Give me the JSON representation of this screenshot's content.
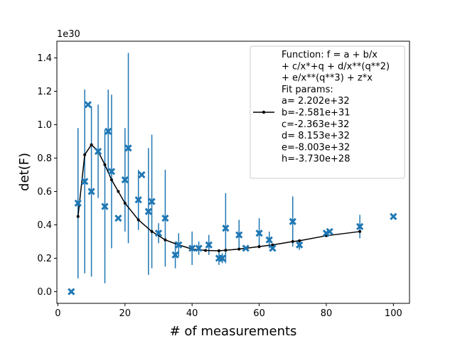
{
  "chart_data": {
    "type": "scatter",
    "xlabel": "# of measurements",
    "ylabel": "det(F)",
    "y_offset_label": "1e30",
    "xlim": [
      -0.3,
      104.8
    ],
    "ylim": [
      -0.07,
      1.5
    ],
    "x_ticks": [
      0,
      20,
      40,
      60,
      80,
      100
    ],
    "y_ticks": [
      0.0,
      0.2,
      0.4,
      0.6,
      0.8,
      1.0,
      1.2,
      1.4
    ],
    "y_tick_labels": [
      "0.0",
      "0.2",
      "0.4",
      "0.6",
      "0.8",
      "1.0",
      "1.2",
      "1.4"
    ],
    "grid": false,
    "legend_position": "top-right",
    "legend_lines": [
      "Function: f = a + b/x",
      "+ c/x*+q + d/x**(q**2)",
      "+ e/x**(q**3) + z*x",
      "Fit params:",
      "a= 2.202e+32",
      "b=-2.581e+31",
      "c=-2.363e+32",
      "d= 8.153e+32",
      "e=-8.003e+32",
      "h=-3.730e+28"
    ],
    "colors": {
      "measurement": "#1f77b4",
      "fit": "#000000"
    },
    "measurements": [
      {
        "x": 4,
        "y": 0.0,
        "err": 0
      },
      {
        "x": 6,
        "y": 0.53,
        "err": 0.45
      },
      {
        "x": 8,
        "y": 0.66,
        "err": 0.55
      },
      {
        "x": 9,
        "y": 1.12,
        "err": 0
      },
      {
        "x": 10,
        "y": 0.6,
        "err": 0.51
      },
      {
        "x": 12,
        "y": 0.84,
        "err": 0.28
      },
      {
        "x": 14,
        "y": 0.51,
        "err": 0.46
      },
      {
        "x": 15,
        "y": 0.96,
        "err": 0.25
      },
      {
        "x": 16,
        "y": 0.72,
        "err": 0.46
      },
      {
        "x": 18,
        "y": 0.44,
        "err": 0
      },
      {
        "x": 20,
        "y": 0.67,
        "err": 0.31
      },
      {
        "x": 21,
        "y": 0.86,
        "err": 0.57
      },
      {
        "x": 24,
        "y": 0.55,
        "err": 0.18
      },
      {
        "x": 25,
        "y": 0.7,
        "err": 0
      },
      {
        "x": 27,
        "y": 0.48,
        "err": 0.38
      },
      {
        "x": 28,
        "y": 0.54,
        "err": 0.4
      },
      {
        "x": 30,
        "y": 0.35,
        "err": 0.06
      },
      {
        "x": 32,
        "y": 0.44,
        "err": 0.29
      },
      {
        "x": 35,
        "y": 0.22,
        "err": 0.08
      },
      {
        "x": 36,
        "y": 0.28,
        "err": 0.07
      },
      {
        "x": 40,
        "y": 0.26,
        "err": 0.1
      },
      {
        "x": 42,
        "y": 0.26,
        "err": 0.04
      },
      {
        "x": 45,
        "y": 0.28,
        "err": 0.06
      },
      {
        "x": 48,
        "y": 0.2,
        "err": 0.04
      },
      {
        "x": 49,
        "y": 0.2,
        "err": 0.03
      },
      {
        "x": 50,
        "y": 0.38,
        "err": 0.21
      },
      {
        "x": 54,
        "y": 0.34,
        "err": 0.09
      },
      {
        "x": 56,
        "y": 0.26,
        "err": 0
      },
      {
        "x": 60,
        "y": 0.35,
        "err": 0.09
      },
      {
        "x": 63,
        "y": 0.31,
        "err": 0.05
      },
      {
        "x": 64,
        "y": 0.26,
        "err": 0
      },
      {
        "x": 70,
        "y": 0.42,
        "err": 0.15
      },
      {
        "x": 72,
        "y": 0.28,
        "err": 0.03
      },
      {
        "x": 80,
        "y": 0.35,
        "err": 0
      },
      {
        "x": 81,
        "y": 0.36,
        "err": 0
      },
      {
        "x": 90,
        "y": 0.39,
        "err": 0.07
      },
      {
        "x": 100,
        "y": 0.45,
        "err": 0
      }
    ],
    "fit": {
      "x": [
        6,
        8,
        10,
        12,
        14,
        16,
        18,
        20,
        24,
        28,
        32,
        36,
        40,
        44,
        48,
        50,
        54,
        60,
        64,
        70,
        72,
        80,
        90
      ],
      "y": [
        0.45,
        0.82,
        0.88,
        0.84,
        0.76,
        0.67,
        0.6,
        0.53,
        0.43,
        0.36,
        0.31,
        0.28,
        0.255,
        0.247,
        0.245,
        0.248,
        0.255,
        0.27,
        0.28,
        0.3,
        0.305,
        0.335,
        0.36
      ]
    }
  }
}
